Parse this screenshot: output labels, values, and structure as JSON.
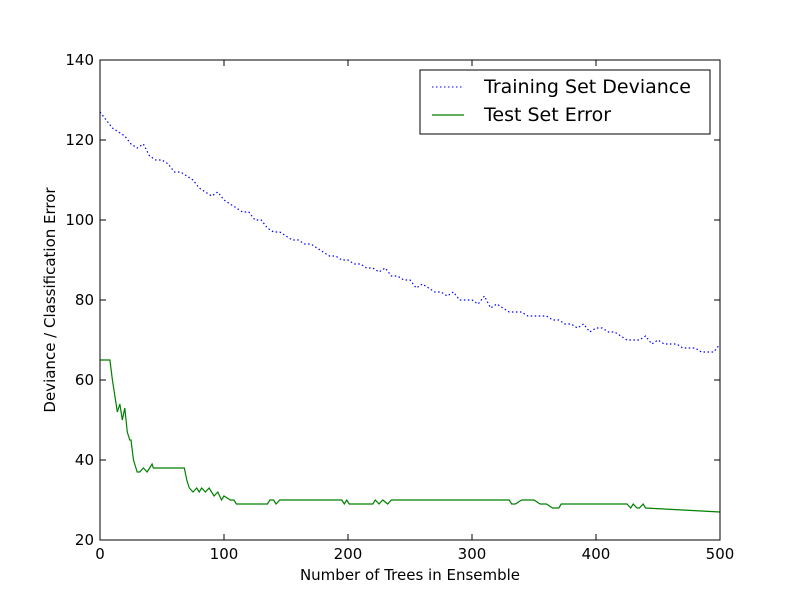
{
  "chart_data": {
    "type": "line",
    "title": "",
    "xlabel": "Number of Trees in Ensemble",
    "ylabel": "Deviance / Classification Error",
    "xlim": [
      0,
      500
    ],
    "ylim": [
      20,
      140
    ],
    "xticks": [
      0,
      100,
      200,
      300,
      400,
      500
    ],
    "yticks": [
      20,
      40,
      60,
      80,
      100,
      120,
      140
    ],
    "grid": false,
    "legend_position": "top-right",
    "series": [
      {
        "name": "Training Set Deviance",
        "style": "dotted",
        "color": "#0000ff",
        "x": [
          0,
          5,
          10,
          15,
          20,
          25,
          30,
          35,
          40,
          45,
          50,
          55,
          60,
          65,
          70,
          75,
          80,
          85,
          90,
          95,
          100,
          105,
          110,
          115,
          120,
          125,
          130,
          135,
          140,
          145,
          150,
          155,
          160,
          165,
          170,
          175,
          180,
          185,
          190,
          195,
          200,
          205,
          210,
          215,
          220,
          225,
          230,
          235,
          240,
          245,
          250,
          255,
          260,
          265,
          270,
          275,
          280,
          285,
          290,
          295,
          300,
          305,
          310,
          315,
          320,
          325,
          330,
          335,
          340,
          345,
          350,
          355,
          360,
          365,
          370,
          375,
          380,
          385,
          390,
          395,
          400,
          405,
          410,
          415,
          420,
          425,
          430,
          435,
          440,
          445,
          450,
          455,
          460,
          465,
          470,
          475,
          480,
          485,
          490,
          495,
          500
        ],
        "values": [
          127,
          125,
          123,
          122,
          121,
          119,
          118,
          119,
          116,
          115,
          115,
          114,
          112,
          112,
          111,
          110,
          108,
          107,
          106,
          107,
          105,
          104,
          103,
          102,
          102,
          100,
          100,
          98,
          97,
          97,
          96,
          95,
          95,
          94,
          94,
          93,
          92,
          91,
          91,
          90,
          90,
          89,
          89,
          88,
          88,
          87,
          88,
          86,
          86,
          85,
          85,
          83,
          84,
          83,
          82,
          82,
          81,
          82,
          80,
          80,
          80,
          79,
          81,
          78,
          79,
          78,
          77,
          77,
          77,
          76,
          76,
          76,
          76,
          75,
          75,
          74,
          74,
          73,
          74,
          72,
          73,
          73,
          72,
          72,
          71,
          70,
          70,
          70,
          71,
          69,
          70,
          69,
          69,
          69,
          68,
          68,
          68,
          67,
          67,
          67,
          69
        ]
      },
      {
        "name": "Test Set Error",
        "style": "solid",
        "color": "#008000",
        "x": [
          0,
          8,
          10,
          12,
          14,
          16,
          18,
          20,
          22,
          24,
          25,
          27,
          30,
          32,
          35,
          38,
          40,
          42,
          43,
          45,
          55,
          68,
          70,
          72,
          75,
          78,
          80,
          82,
          85,
          88,
          90,
          92,
          95,
          98,
          100,
          105,
          108,
          110,
          135,
          137,
          140,
          142,
          145,
          195,
          197,
          199,
          201,
          205,
          220,
          222,
          225,
          228,
          232,
          235,
          240,
          330,
          332,
          335,
          340,
          350,
          355,
          360,
          365,
          370,
          372,
          375,
          380,
          425,
          428,
          430,
          433,
          435,
          438,
          440,
          500
        ],
        "values": [
          65,
          65,
          60,
          56,
          52,
          54,
          50,
          53,
          47,
          45,
          45,
          40,
          37,
          37,
          38,
          37,
          38,
          39,
          38,
          38,
          38,
          38,
          35,
          33,
          32,
          33,
          32,
          33,
          32,
          33,
          32,
          31,
          32,
          30,
          31,
          30,
          30,
          29,
          29,
          30,
          30,
          29,
          30,
          30,
          29,
          30,
          29,
          29,
          29,
          30,
          29,
          30,
          29,
          30,
          30,
          30,
          29,
          29,
          30,
          30,
          29,
          29,
          28,
          28,
          29,
          29,
          29,
          29,
          28,
          29,
          28,
          28,
          29,
          28,
          27
        ]
      }
    ]
  }
}
